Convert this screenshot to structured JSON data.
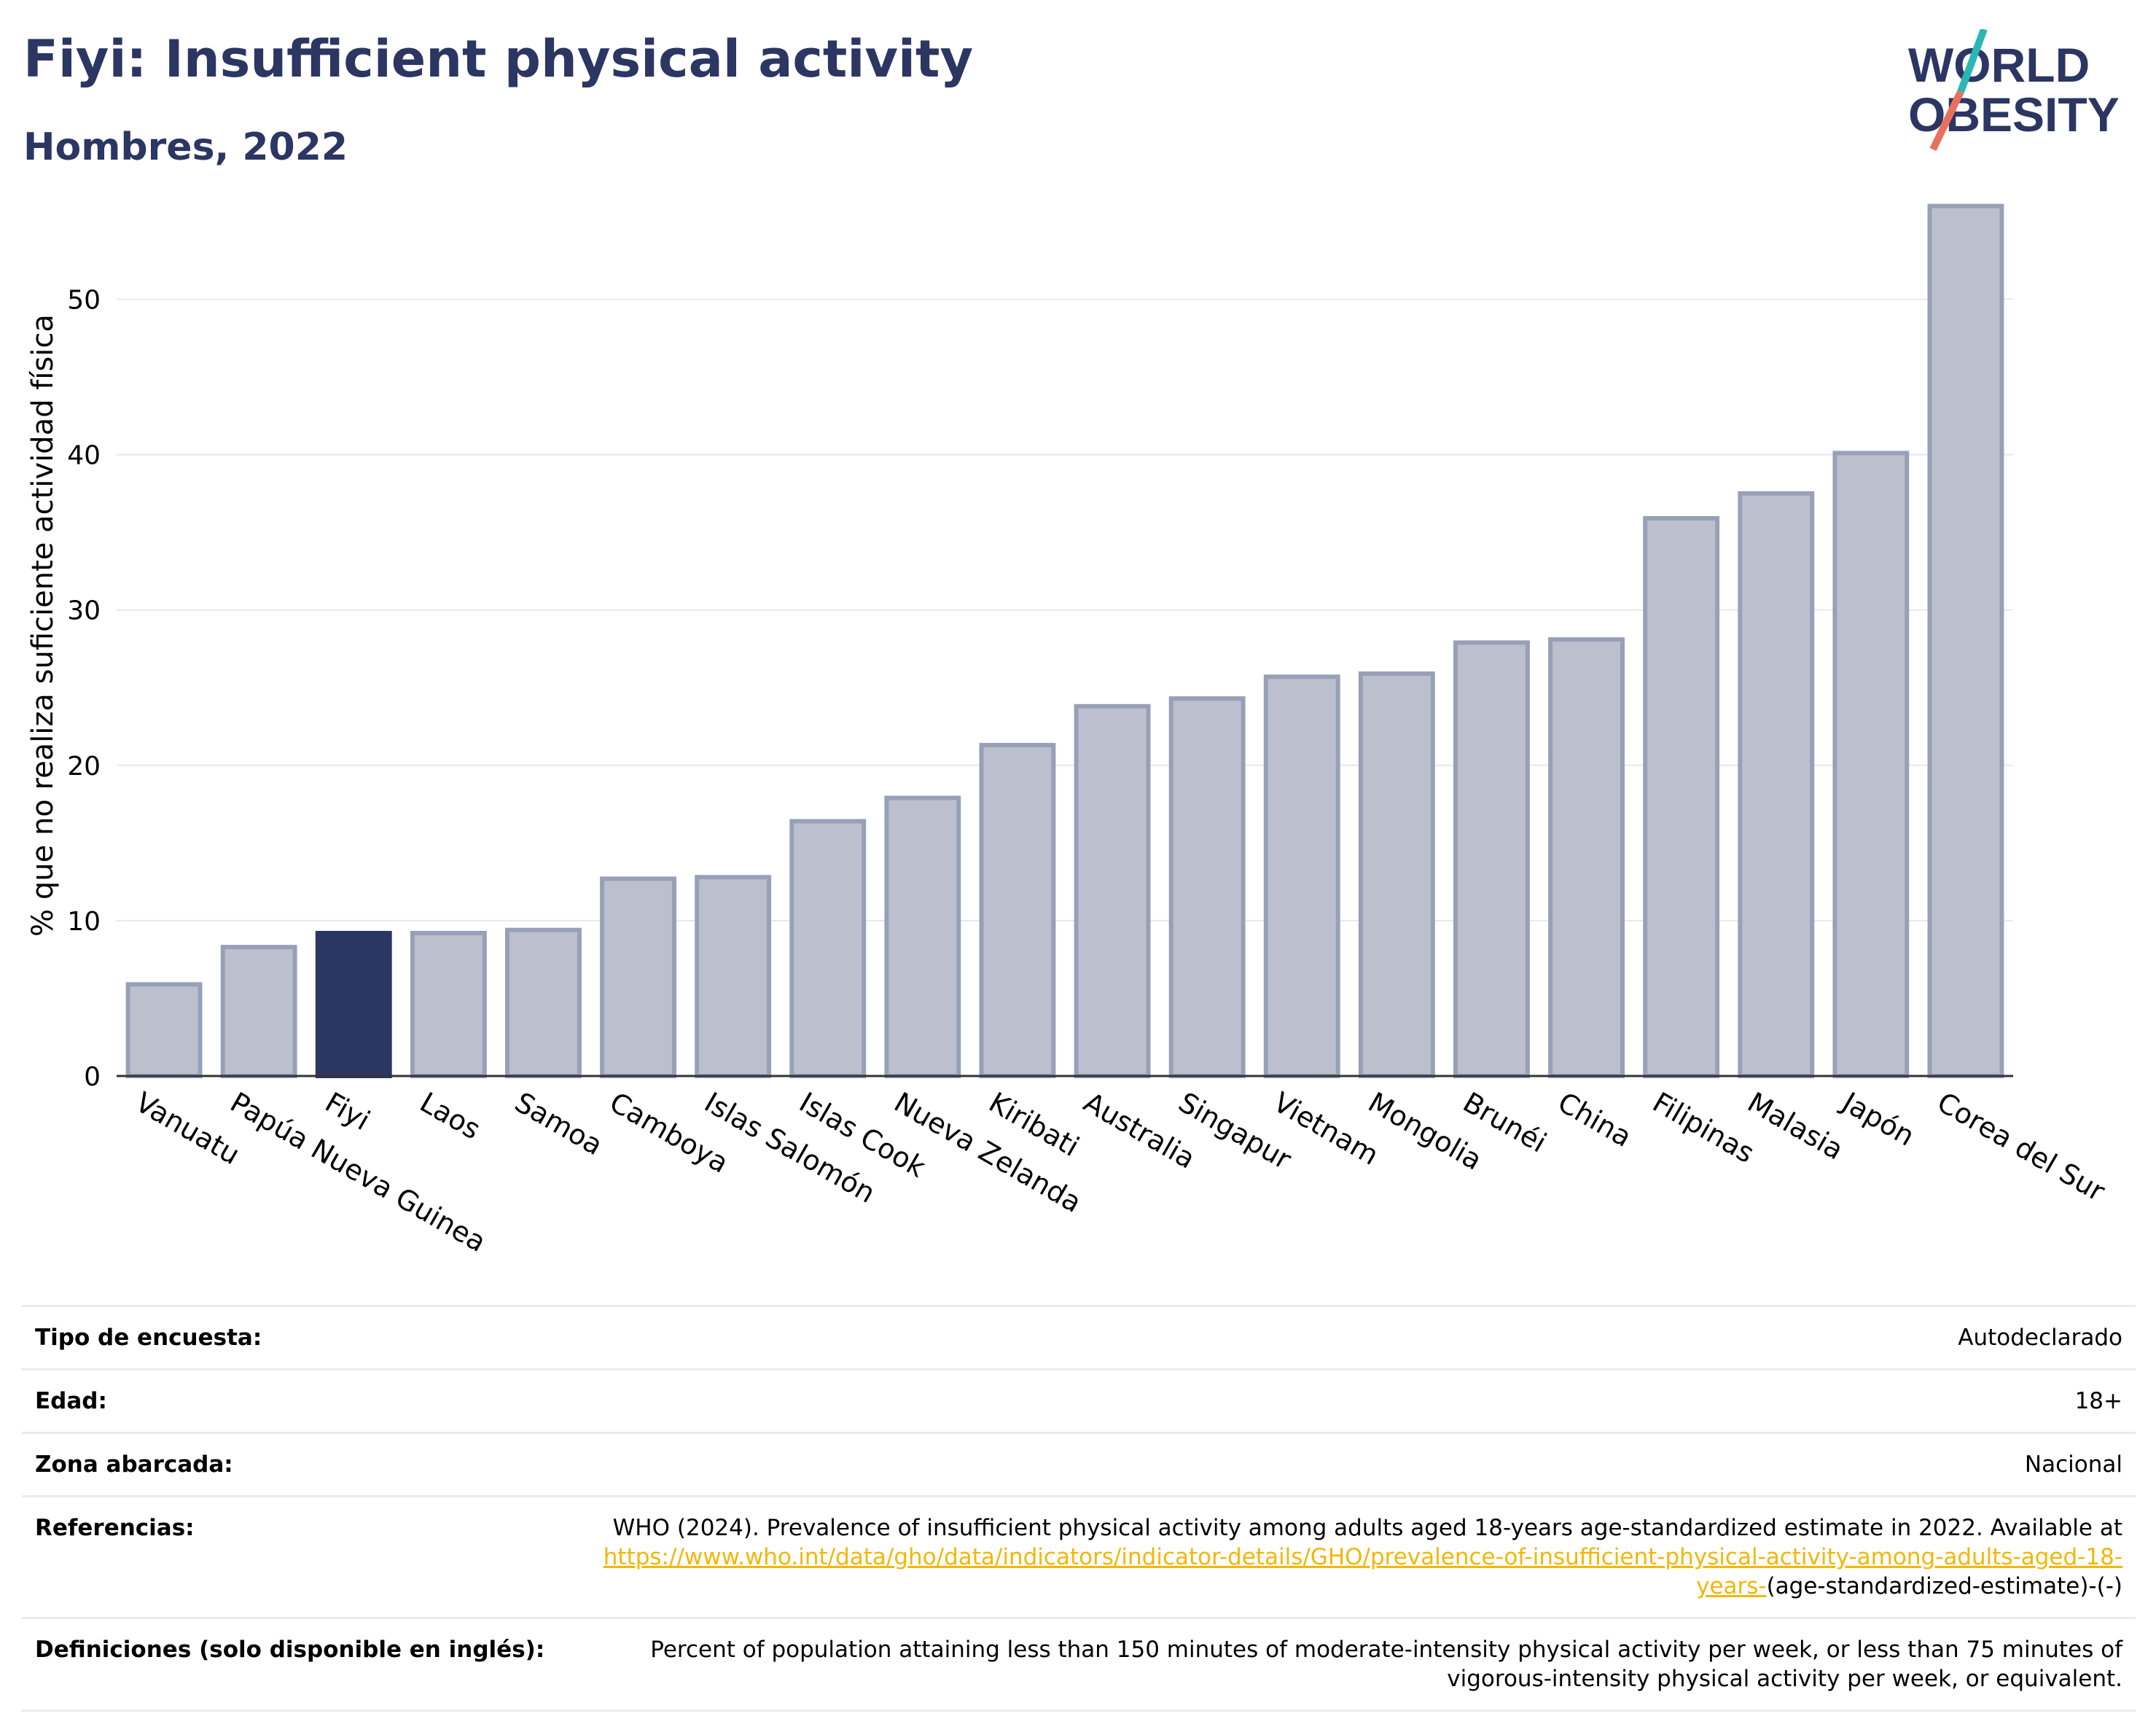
{
  "header": {
    "title": "Fiyi: Insufficient physical activity",
    "subtitle": "Hombres, 2022"
  },
  "logo": {
    "line1": "WORLD",
    "line2": "OBESITY",
    "accent_teal": "#2ab7b3",
    "accent_coral": "#e8715e",
    "text_color": "#2b3663"
  },
  "colors": {
    "highlight": "#2b3663",
    "bar": "#bcc0ce",
    "bar_stroke": "#98a0b8"
  },
  "chart_data": {
    "type": "bar",
    "title": "Fiyi: Insufficient physical activity",
    "subtitle": "Hombres, 2022",
    "xlabel": "",
    "ylabel": "% que no realiza suficiente actividad física",
    "ylim": [
      0,
      58
    ],
    "yticks": [
      0,
      10,
      20,
      30,
      40,
      50
    ],
    "grid": true,
    "highlight": "Fiyi",
    "categories": [
      "Vanuatu",
      "Papúa Nueva Guinea",
      "Fiyi",
      "Laos",
      "Samoa",
      "Camboya",
      "Islas Salomón",
      "Islas Cook",
      "Nueva Zelanda",
      "Kiribati",
      "Australia",
      "Singapur",
      "Vietnam",
      "Mongolia",
      "Brunéi",
      "China",
      "Filipinas",
      "Malasia",
      "Japón",
      "Corea del Sur"
    ],
    "values": [
      5.9,
      8.3,
      9.2,
      9.2,
      9.4,
      12.7,
      12.8,
      16.4,
      17.9,
      21.3,
      23.8,
      24.3,
      25.7,
      25.9,
      27.9,
      28.1,
      35.9,
      37.5,
      40.1,
      56.0
    ]
  },
  "metadata": {
    "rows": [
      {
        "label": "Tipo de encuesta:",
        "value": "Autodeclarado"
      },
      {
        "label": "Edad:",
        "value": "18+"
      },
      {
        "label": "Zona abarcada:",
        "value": "Nacional"
      },
      {
        "label": "Referencias:",
        "value_prefix": "WHO (2024). Prevalence of insufficient physical activity among adults aged 18-years age-standardized estimate in 2022. Available at",
        "link": "https://www.who.int/data/gho/data/indicators/indicator-details/GHO/prevalence-of-insufficient-physical-activity-among-adults-aged-18-years-",
        "value_suffix": "(age-standardized-estimate)-(-)"
      },
      {
        "label": "Definiciones (solo disponible en inglés):",
        "value": "Percent of population attaining less than 150 minutes of moderate-intensity physical activity per week, or less than 75 minutes of vigorous-intensity physical activity per week, or equivalent."
      }
    ]
  }
}
